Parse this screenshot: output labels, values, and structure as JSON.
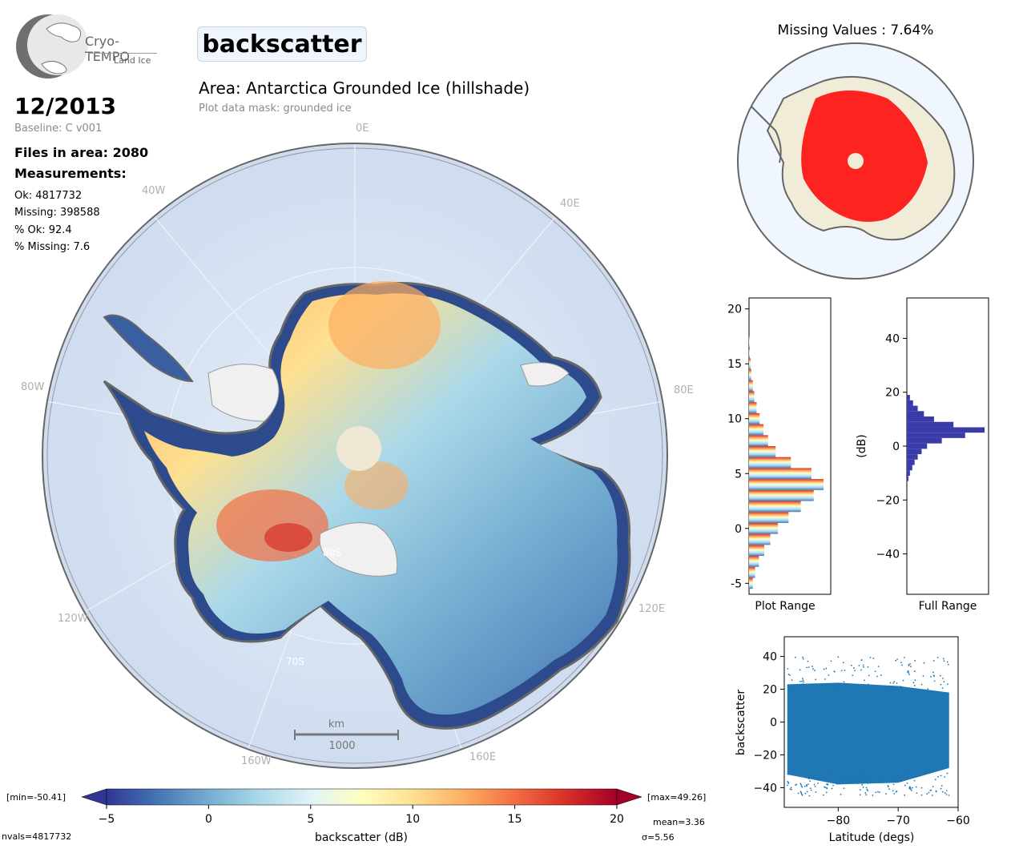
{
  "logo": {
    "name": "Cryo-TEMPO",
    "sub": "Land Ice"
  },
  "title": "backscatter",
  "area": "Area: Antarctica Grounded Ice (hillshade)",
  "mask": "Plot data mask: grounded ice",
  "date": "12/2013",
  "baseline": "Baseline: C v001",
  "files": "Files in area: 2080",
  "measurements_label": "Measurements:",
  "stats": {
    "ok": "Ok: 4817732",
    "missing": "Missing: 398588",
    "pct_ok": "% Ok: 92.4",
    "pct_missing": "% Missing: 7.6"
  },
  "map": {
    "lon_labels": [
      "0E",
      "40E",
      "80E",
      "120E",
      "160E",
      "160W",
      "120W",
      "80W",
      "40W"
    ],
    "lat_labels": [
      "80S",
      "70S"
    ],
    "scale_unit": "km",
    "scale_value": "1000"
  },
  "missing_title": "Missing Values : 7.64%",
  "colors": {
    "ocean": "#dbe7f4",
    "ice_shelf": "#f0f0f0",
    "missing": "#ff0000",
    "land_grey": "#7a7a7a",
    "hist_full": "#3b3ba8",
    "scatter": "#1f77b4"
  },
  "chart_data": [
    {
      "type": "bar",
      "name": "plot-range-histogram",
      "orientation": "horizontal",
      "xlabel": "Plot Range",
      "ylim": [
        -6,
        21
      ],
      "yticks": [
        -5,
        0,
        5,
        10,
        15,
        20
      ],
      "bins_center": [
        -5,
        -4,
        -3,
        -2,
        -1,
        0,
        1,
        2,
        3,
        4,
        5,
        6,
        7,
        8,
        9,
        10,
        11,
        12,
        13,
        14,
        15,
        16,
        17
      ],
      "counts_rel": [
        0.05,
        0.08,
        0.13,
        0.2,
        0.28,
        0.38,
        0.52,
        0.68,
        0.85,
        0.98,
        0.82,
        0.55,
        0.35,
        0.25,
        0.19,
        0.14,
        0.1,
        0.07,
        0.05,
        0.03,
        0.02,
        0.01,
        0.005
      ]
    },
    {
      "type": "bar",
      "name": "full-range-histogram",
      "orientation": "horizontal",
      "xlabel": "Full Range",
      "ylabel": "(dB)",
      "ylim": [
        -55,
        55
      ],
      "yticks": [
        -40,
        -20,
        0,
        20,
        40
      ],
      "bins_center": [
        -12,
        -10,
        -8,
        -6,
        -4,
        -2,
        0,
        2,
        4,
        6,
        8,
        10,
        12,
        14,
        16,
        18
      ],
      "counts_rel": [
        0.02,
        0.04,
        0.07,
        0.1,
        0.14,
        0.19,
        0.26,
        0.45,
        0.75,
        1.0,
        0.6,
        0.35,
        0.22,
        0.14,
        0.08,
        0.04
      ]
    },
    {
      "type": "scatter",
      "name": "backscatter-vs-latitude",
      "xlabel": "Latitude (degs)",
      "ylabel": "backscatter",
      "xlim": [
        -89,
        -60
      ],
      "ylim": [
        -52,
        52
      ],
      "xticks": [
        -80,
        -70,
        -60
      ],
      "yticks": [
        -40,
        -20,
        0,
        20,
        40
      ],
      "band": {
        "x_min": -88.5,
        "x_max": -61.5,
        "typical_y_min": -30,
        "typical_y_max": 20
      }
    },
    {
      "type": "colorbar",
      "name": "backscatter-colorbar",
      "label": "backscatter (dB)",
      "range": [
        -5,
        20
      ],
      "ticks": [
        -5,
        0,
        5,
        10,
        15,
        20
      ],
      "min_label": "[min=-50.41]",
      "max_label": "[max=49.26]",
      "nvals": "nvals=4817732",
      "mean": "mean=3.36",
      "sigma": "σ=5.56",
      "colormap": [
        "#313695",
        "#4575b4",
        "#74add1",
        "#abd9e9",
        "#e0f3f8",
        "#ffffbf",
        "#fee090",
        "#fdae61",
        "#f46d43",
        "#d73027",
        "#a50026"
      ]
    }
  ]
}
